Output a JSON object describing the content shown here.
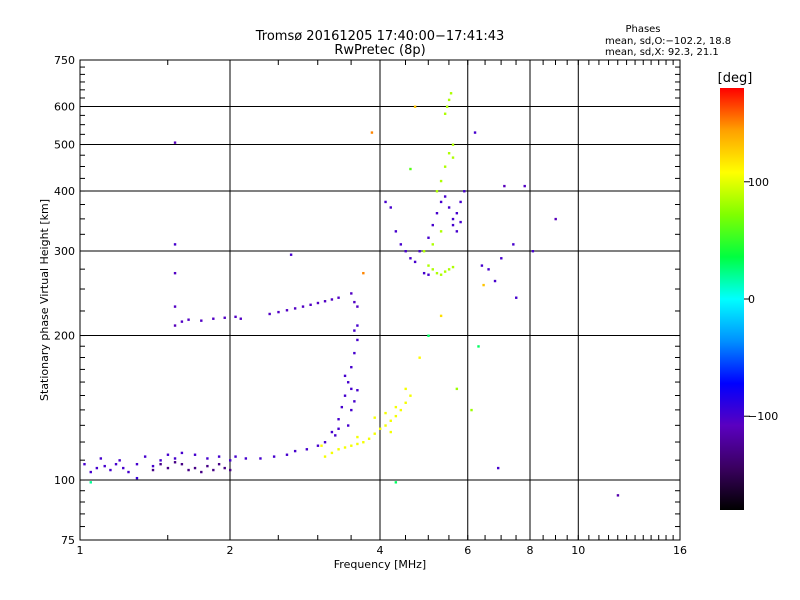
{
  "title": {
    "line1": "Tromsø 20161205 17:40:00−17:41:43",
    "line2": "RwPretec (8p)"
  },
  "stats": {
    "heading": "Phases",
    "line1": "mean, sd,O:−102.2, 18.8",
    "line2": "mean, sd,X:  92.3, 21.1"
  },
  "colorbar": {
    "unit": "[deg]",
    "ticks": [
      {
        "value": 100,
        "label": "100"
      },
      {
        "value": 0,
        "label": "0"
      },
      {
        "value": -100,
        "label": "−100"
      }
    ],
    "range": [
      -180,
      180
    ],
    "colors": [
      "#000000",
      "#3a0060",
      "#5a00c0",
      "#0000ff",
      "#0090ff",
      "#00ffff",
      "#00ff40",
      "#80ff00",
      "#ffff00",
      "#ffa000",
      "#ff0000"
    ]
  },
  "chart_data": {
    "type": "scatter",
    "title": "Tromsø 20161205 17:40:00−17:41:43",
    "subtitle": "RwPretec (8p)",
    "xlabel": "Frequency [MHz]",
    "ylabel": "Stationary phase Virtual Height [km]",
    "x_scale": "log",
    "y_scale": "log",
    "xlim": [
      1,
      16
    ],
    "ylim": [
      75,
      750
    ],
    "x_ticks": [
      {
        "value": 1,
        "label": "1"
      },
      {
        "value": 2,
        "label": "2"
      },
      {
        "value": 4,
        "label": "4"
      },
      {
        "value": 6,
        "label": "6"
      },
      {
        "value": 8,
        "label": "8"
      },
      {
        "value": 10,
        "label": "10"
      },
      {
        "value": 16,
        "label": "16"
      }
    ],
    "y_ticks": [
      {
        "value": 75,
        "label": "75"
      },
      {
        "value": 100,
        "label": "100"
      },
      {
        "value": 200,
        "label": "200"
      },
      {
        "value": 300,
        "label": "300"
      },
      {
        "value": 400,
        "label": "400"
      },
      {
        "value": 500,
        "label": "500"
      },
      {
        "value": 600,
        "label": "600"
      },
      {
        "value": 750,
        "label": "750"
      }
    ],
    "grid": true,
    "color_scale": "phase [deg]",
    "point_groups": [
      {
        "points": [
          [
            1.02,
            108
          ],
          [
            1.05,
            104
          ],
          [
            1.08,
            106
          ],
          [
            1.1,
            111
          ],
          [
            1.12,
            107
          ],
          [
            1.15,
            105
          ],
          [
            1.18,
            108
          ],
          [
            1.2,
            110
          ],
          [
            1.22,
            106
          ],
          [
            1.25,
            104
          ],
          [
            1.3,
            108
          ],
          [
            1.35,
            112
          ],
          [
            1.4,
            107
          ],
          [
            1.45,
            110
          ],
          [
            1.5,
            113
          ],
          [
            1.55,
            111
          ],
          [
            1.6,
            114
          ],
          [
            1.7,
            113
          ],
          [
            1.8,
            111
          ],
          [
            1.9,
            112
          ],
          [
            2.0,
            110
          ],
          [
            2.05,
            112
          ],
          [
            2.15,
            111
          ],
          [
            2.3,
            111
          ],
          [
            2.45,
            112
          ],
          [
            2.6,
            113
          ],
          [
            2.7,
            115
          ],
          [
            2.85,
            116
          ],
          [
            3.0,
            118
          ],
          [
            3.1,
            120
          ],
          [
            3.2,
            126
          ],
          [
            3.3,
            134
          ],
          [
            3.35,
            142
          ],
          [
            3.4,
            150
          ],
          [
            3.45,
            160
          ],
          [
            3.5,
            172
          ],
          [
            3.55,
            184
          ],
          [
            3.6,
            196
          ],
          [
            3.45,
            130
          ],
          [
            3.5,
            140
          ],
          [
            3.55,
            146
          ],
          [
            3.6,
            154
          ],
          [
            3.4,
            165
          ],
          [
            3.5,
            155
          ],
          [
            3.55,
            205
          ],
          [
            3.6,
            210
          ],
          [
            3.3,
            128
          ],
          [
            3.25,
            124
          ]
        ],
        "phase": -100
      },
      {
        "points": [
          [
            1.6,
            108
          ],
          [
            1.65,
            105
          ],
          [
            1.7,
            106
          ],
          [
            1.75,
            104
          ],
          [
            1.8,
            107
          ],
          [
            1.85,
            105
          ],
          [
            1.9,
            108
          ],
          [
            1.95,
            106
          ],
          [
            2.0,
            105
          ],
          [
            1.55,
            109
          ],
          [
            1.5,
            106
          ],
          [
            1.45,
            108
          ],
          [
            1.4,
            105
          ]
        ],
        "phase": -130
      },
      {
        "points": [
          [
            1.6,
            214
          ],
          [
            1.65,
            216
          ],
          [
            1.75,
            215
          ],
          [
            1.85,
            217
          ],
          [
            1.95,
            218
          ],
          [
            2.05,
            219
          ],
          [
            2.1,
            217
          ],
          [
            2.4,
            222
          ],
          [
            2.5,
            224
          ],
          [
            2.6,
            226
          ],
          [
            2.7,
            228
          ],
          [
            2.8,
            230
          ],
          [
            2.9,
            232
          ],
          [
            3.0,
            234
          ],
          [
            3.1,
            236
          ],
          [
            3.2,
            238
          ],
          [
            3.3,
            240
          ],
          [
            3.5,
            245
          ],
          [
            3.55,
            235
          ],
          [
            3.6,
            230
          ]
        ],
        "phase": -105
      },
      {
        "points": [
          [
            3.1,
            112
          ],
          [
            3.2,
            114
          ],
          [
            3.3,
            116
          ],
          [
            3.4,
            117
          ],
          [
            3.5,
            118
          ],
          [
            3.6,
            119
          ],
          [
            3.7,
            120
          ],
          [
            3.8,
            122
          ],
          [
            3.9,
            125
          ],
          [
            4.0,
            128
          ],
          [
            4.1,
            130
          ],
          [
            4.2,
            133
          ],
          [
            4.3,
            136
          ],
          [
            4.4,
            140
          ],
          [
            4.5,
            145
          ],
          [
            4.6,
            150
          ],
          [
            3.9,
            135
          ],
          [
            4.1,
            138
          ],
          [
            4.3,
            142
          ],
          [
            4.5,
            155
          ],
          [
            4.2,
            126
          ],
          [
            3.6,
            123
          ]
        ],
        "phase": 105
      },
      {
        "points": [
          [
            4.1,
            380
          ],
          [
            4.2,
            370
          ],
          [
            4.3,
            330
          ],
          [
            4.4,
            310
          ],
          [
            4.5,
            300
          ],
          [
            4.6,
            290
          ],
          [
            4.7,
            285
          ],
          [
            4.8,
            300
          ],
          [
            5.0,
            320
          ],
          [
            5.1,
            340
          ],
          [
            5.2,
            360
          ],
          [
            5.3,
            380
          ],
          [
            5.4,
            390
          ],
          [
            5.5,
            370
          ],
          [
            5.6,
            350
          ],
          [
            5.7,
            360
          ],
          [
            5.8,
            380
          ],
          [
            5.9,
            400
          ],
          [
            4.9,
            270
          ],
          [
            5.0,
            268
          ],
          [
            5.6,
            340
          ],
          [
            5.7,
            330
          ],
          [
            5.8,
            345
          ],
          [
            6.2,
            530
          ],
          [
            6.4,
            280
          ],
          [
            6.6,
            275
          ],
          [
            6.8,
            260
          ],
          [
            7.0,
            290
          ],
          [
            7.5,
            240
          ],
          [
            8.1,
            300
          ],
          [
            7.4,
            310
          ]
        ],
        "phase": -100
      },
      {
        "points": [
          [
            4.9,
            300
          ],
          [
            5.0,
            280
          ],
          [
            5.1,
            275
          ],
          [
            5.2,
            270
          ],
          [
            5.3,
            268
          ],
          [
            5.4,
            272
          ],
          [
            5.5,
            275
          ],
          [
            5.6,
            278
          ],
          [
            5.2,
            400
          ],
          [
            5.3,
            420
          ],
          [
            5.4,
            450
          ],
          [
            5.5,
            480
          ],
          [
            5.6,
            500
          ],
          [
            5.4,
            580
          ],
          [
            5.45,
            600
          ],
          [
            5.5,
            620
          ],
          [
            5.55,
            640
          ],
          [
            5.3,
            330
          ],
          [
            5.1,
            310
          ],
          [
            5.6,
            470
          ]
        ],
        "phase": 85
      }
    ],
    "scatter_points": [
      {
        "x": 1.55,
        "y": 505,
        "phase": -110
      },
      {
        "x": 1.55,
        "y": 310,
        "phase": -100
      },
      {
        "x": 1.55,
        "y": 270,
        "phase": -105
      },
      {
        "x": 1.55,
        "y": 230,
        "phase": -105
      },
      {
        "x": 1.55,
        "y": 210,
        "phase": -110
      },
      {
        "x": 2.65,
        "y": 295,
        "phase": -100
      },
      {
        "x": 3.7,
        "y": 270,
        "phase": 150
      },
      {
        "x": 3.85,
        "y": 530,
        "phase": 150
      },
      {
        "x": 4.3,
        "y": 99,
        "phase": 30
      },
      {
        "x": 4.6,
        "y": 445,
        "phase": 60
      },
      {
        "x": 4.7,
        "y": 600,
        "phase": 130
      },
      {
        "x": 5.0,
        "y": 200,
        "phase": 30
      },
      {
        "x": 5.3,
        "y": 220,
        "phase": 120
      },
      {
        "x": 5.7,
        "y": 155,
        "phase": 80
      },
      {
        "x": 6.1,
        "y": 140,
        "phase": 80
      },
      {
        "x": 6.3,
        "y": 190,
        "phase": 30
      },
      {
        "x": 6.45,
        "y": 255,
        "phase": 130
      },
      {
        "x": 6.9,
        "y": 106,
        "phase": -100
      },
      {
        "x": 7.1,
        "y": 410,
        "phase": -110
      },
      {
        "x": 7.8,
        "y": 410,
        "phase": -105
      },
      {
        "x": 9.0,
        "y": 350,
        "phase": -110
      },
      {
        "x": 12.0,
        "y": 93,
        "phase": -115
      },
      {
        "x": 1.05,
        "y": 99,
        "phase": 20
      },
      {
        "x": 1.3,
        "y": 101,
        "phase": -95
      },
      {
        "x": 3.05,
        "y": 118,
        "phase": 110
      },
      {
        "x": 4.8,
        "y": 180,
        "phase": 110
      }
    ]
  }
}
